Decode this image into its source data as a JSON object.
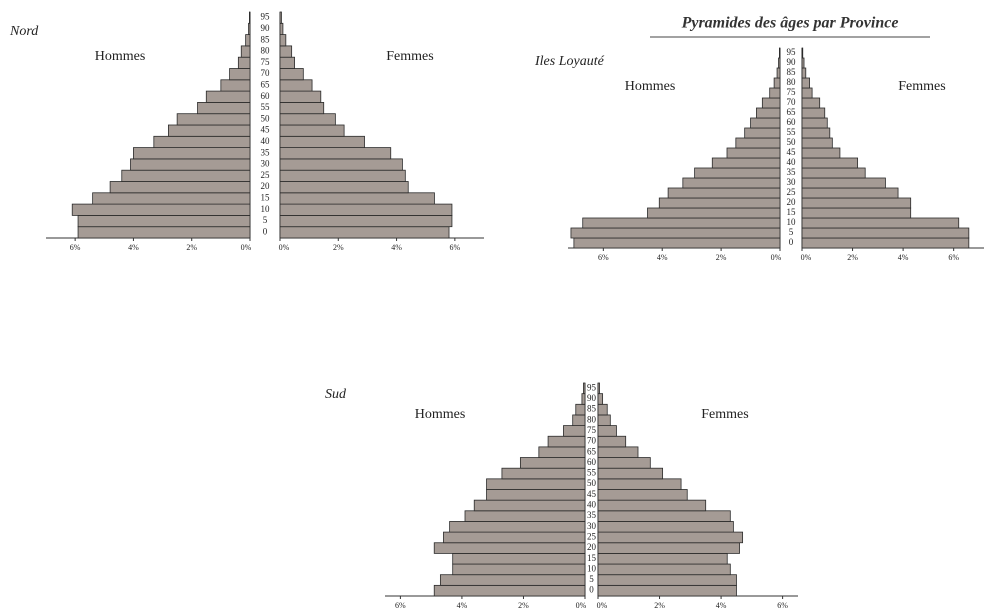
{
  "title": "Pyramides des âges par Province",
  "chart_data": [
    {
      "type": "pyramid",
      "title": "Nord",
      "categories": [
        "0",
        "5",
        "10",
        "15",
        "20",
        "25",
        "30",
        "35",
        "40",
        "45",
        "50",
        "55",
        "60",
        "65",
        "70",
        "75",
        "80",
        "85",
        "90",
        "95"
      ],
      "series": [
        {
          "name": "Hommes",
          "color": "#a59b95",
          "values": [
            5.9,
            5.9,
            6.1,
            5.4,
            4.8,
            4.4,
            4.1,
            4.0,
            3.3,
            2.8,
            2.5,
            1.8,
            1.5,
            1.0,
            0.7,
            0.4,
            0.3,
            0.15,
            0.05,
            0.02
          ]
        },
        {
          "name": "Femmes",
          "color": "#a59b95",
          "values": [
            5.8,
            5.9,
            5.9,
            5.3,
            4.4,
            4.3,
            4.2,
            3.8,
            2.9,
            2.2,
            1.9,
            1.5,
            1.4,
            1.1,
            0.8,
            0.5,
            0.4,
            0.2,
            0.1,
            0.05
          ]
        }
      ],
      "xlim": [
        0,
        7
      ],
      "xticks": [
        {
          "value": 0,
          "label": "0%"
        },
        {
          "value": 2,
          "label": "2%"
        },
        {
          "value": 4,
          "label": "4%"
        },
        {
          "value": 6,
          "label": "6%"
        }
      ]
    },
    {
      "type": "pyramid",
      "title": "Iles Loyauté",
      "categories": [
        "0",
        "5",
        "10",
        "15",
        "20",
        "25",
        "30",
        "35",
        "40",
        "45",
        "50",
        "55",
        "60",
        "65",
        "70",
        "75",
        "80",
        "85",
        "90",
        "95"
      ],
      "series": [
        {
          "name": "Hommes",
          "color": "#a59b95",
          "values": [
            7.0,
            7.1,
            6.7,
            4.5,
            4.1,
            3.8,
            3.3,
            2.9,
            2.3,
            1.8,
            1.5,
            1.2,
            1.0,
            0.8,
            0.6,
            0.35,
            0.2,
            0.1,
            0.05,
            0.02
          ]
        },
        {
          "name": "Femmes",
          "color": "#a59b95",
          "values": [
            6.6,
            6.6,
            6.2,
            4.3,
            4.3,
            3.8,
            3.3,
            2.5,
            2.2,
            1.5,
            1.2,
            1.1,
            1.0,
            0.9,
            0.7,
            0.4,
            0.3,
            0.15,
            0.08,
            0.03
          ]
        }
      ],
      "xlim": [
        0,
        7.2
      ],
      "xticks": [
        {
          "value": 0,
          "label": "0%"
        },
        {
          "value": 2,
          "label": "2%"
        },
        {
          "value": 4,
          "label": "4%"
        },
        {
          "value": 6,
          "label": "6%"
        }
      ]
    },
    {
      "type": "pyramid",
      "title": "Sud",
      "categories": [
        "0",
        "5",
        "10",
        "15",
        "20",
        "25",
        "30",
        "35",
        "40",
        "45",
        "50",
        "55",
        "60",
        "65",
        "70",
        "75",
        "80",
        "85",
        "90",
        "95"
      ],
      "series": [
        {
          "name": "Hommes",
          "color": "#a59b95",
          "values": [
            4.9,
            4.7,
            4.3,
            4.3,
            4.9,
            4.6,
            4.4,
            3.9,
            3.6,
            3.2,
            3.2,
            2.7,
            2.1,
            1.5,
            1.2,
            0.7,
            0.4,
            0.3,
            0.1,
            0.05
          ]
        },
        {
          "name": "Femmes",
          "color": "#a59b95",
          "values": [
            4.5,
            4.5,
            4.3,
            4.2,
            4.6,
            4.7,
            4.4,
            4.3,
            3.5,
            2.9,
            2.7,
            2.1,
            1.7,
            1.3,
            0.9,
            0.6,
            0.4,
            0.3,
            0.15,
            0.05
          ]
        }
      ],
      "xlim": [
        0,
        6.5
      ],
      "xticks": [
        {
          "value": 0,
          "label": "0%"
        },
        {
          "value": 2,
          "label": "2%"
        },
        {
          "value": 4,
          "label": "4%"
        },
        {
          "value": 6,
          "label": "6%"
        }
      ]
    }
  ]
}
